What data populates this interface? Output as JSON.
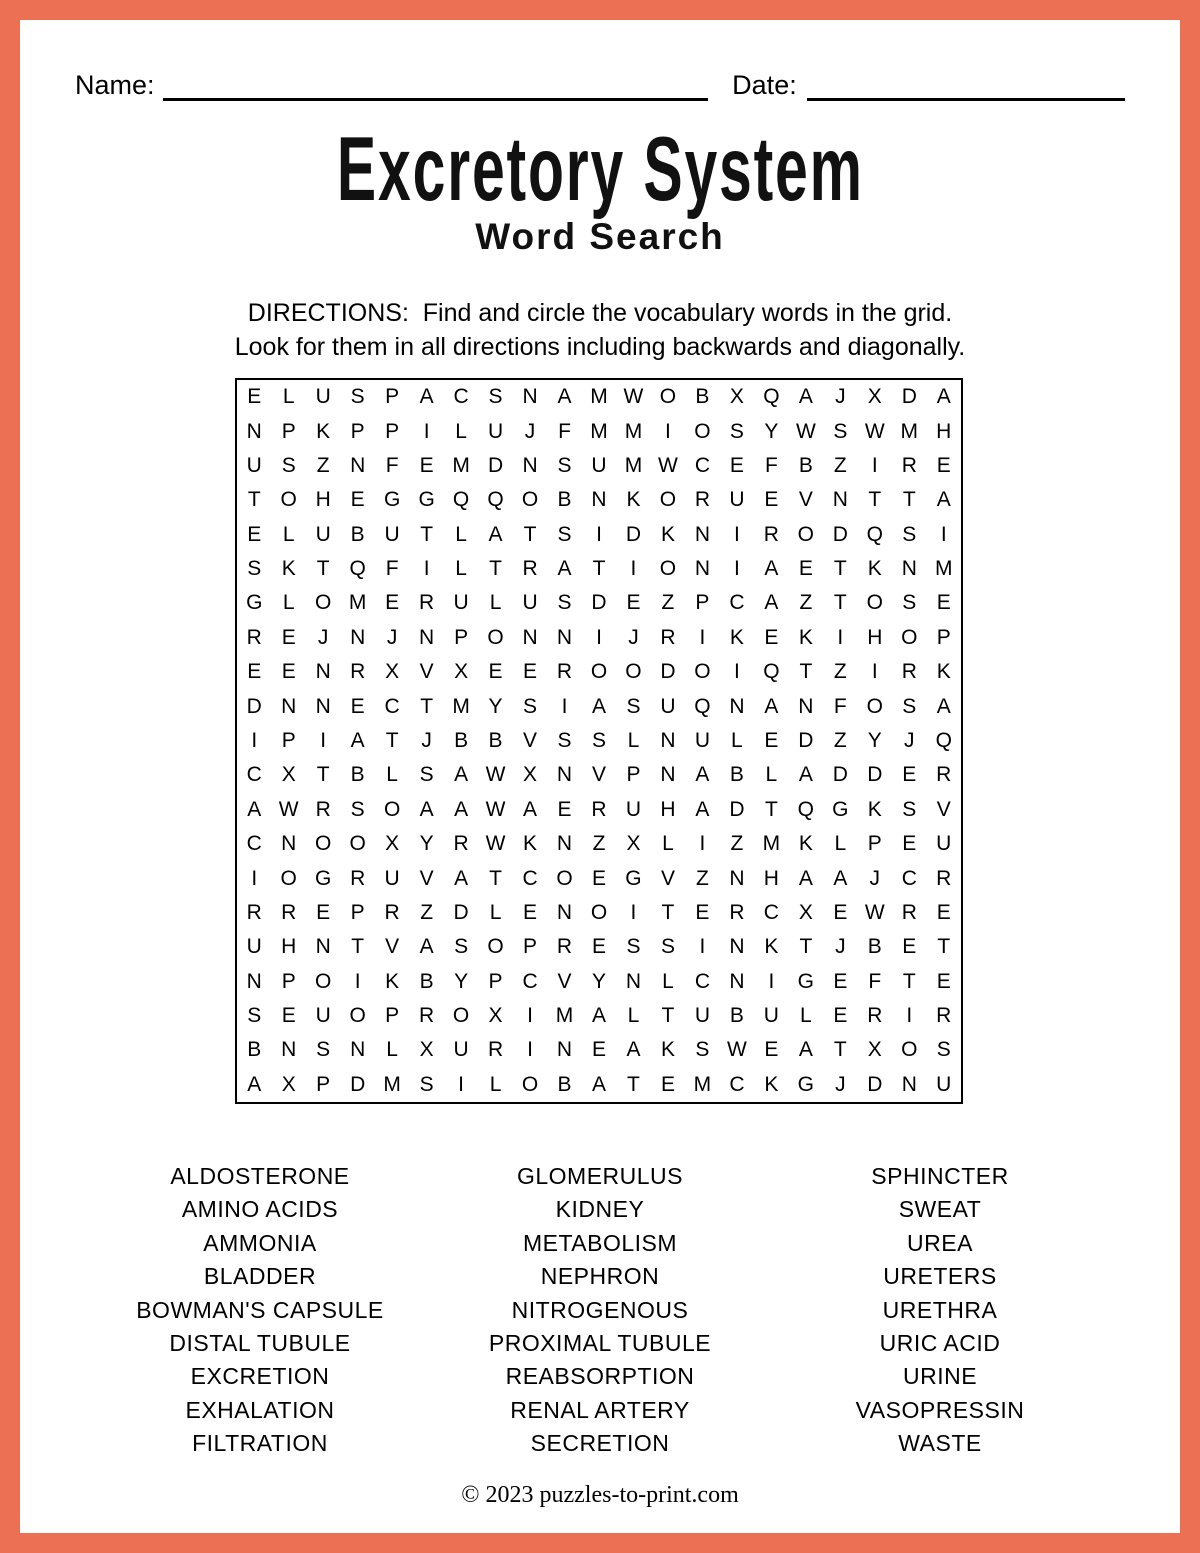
{
  "page": {
    "border_color": "#EC7053",
    "background": "#FFFFFF"
  },
  "header": {
    "name_label": "Name:",
    "date_label": "Date:"
  },
  "title": {
    "main": "Excretory System",
    "subtitle": "Word Search"
  },
  "directions": {
    "line1": "DIRECTIONS:  Find and circle the vocabulary words in the grid.",
    "line2": "Look for them in all directions including backwards and diagonally."
  },
  "grid": {
    "columns": 21,
    "rows": [
      "ELUSPACSNAMWOBXQAJXDA",
      "NPKPPILUJFMMIOSYWSWMH",
      "USZNFEMDNSUMWCEFBZIRE",
      "TOHEGGQQOBNKORUEVNTTA",
      "ELUBUTLATSIDKNIRODQSI",
      "SKTQFILTRATIONIAETKNM",
      "GLOMERULUSDEZPCAZTOSE",
      "REJNJNPONNIJRIKEKIHOP",
      "EENRXVXEEROODOIQTZIRK",
      "DNNECTMYSIASUQNANFOSA",
      "IPIATJBBVSSLNULEDZYJQ",
      "CXTBLSAWXNVPNABLADDER",
      "AWRSOAAWAERUHADTQGKSV",
      "CNOOXYRWKNZXLIZMKLPEU",
      "IOGRUVATCOEGVZNHAAJCR",
      "RREPRZDLENOITERCXEWRE",
      "UHNTVASOPRESSINKTJBET",
      "NPOIKBYPCVYNLCNIGEFTE",
      "SEUOPROXIMALTUBULERIR",
      "BNSNLXURINEAKSWEATXOS",
      "AXPDMSILOBATEMCKGJDNU"
    ]
  },
  "word_list": {
    "columns": [
      [
        "ALDOSTERONE",
        "AMINO ACIDS",
        "AMMONIA",
        "BLADDER",
        "BOWMAN'S CAPSULE",
        "DISTAL TUBULE",
        "EXCRETION",
        "EXHALATION",
        "FILTRATION"
      ],
      [
        "GLOMERULUS",
        "KIDNEY",
        "METABOLISM",
        "NEPHRON",
        "NITROGENOUS",
        "PROXIMAL TUBULE",
        "REABSORPTION",
        "RENAL ARTERY",
        "SECRETION"
      ],
      [
        "SPHINCTER",
        "SWEAT",
        "UREA",
        "URETERS",
        "URETHRA",
        "URIC ACID",
        "URINE",
        "VASOPRESSIN",
        "WASTE"
      ]
    ]
  },
  "footer": {
    "copyright": "© 2023 puzzles-to-print.com"
  }
}
